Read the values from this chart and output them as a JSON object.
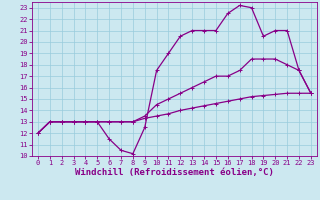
{
  "xlabel": "Windchill (Refroidissement éolien,°C)",
  "bg_color": "#cce8f0",
  "line_color": "#880088",
  "xlim": [
    -0.5,
    23.5
  ],
  "ylim": [
    10,
    23.5
  ],
  "xticks": [
    0,
    1,
    2,
    3,
    4,
    5,
    6,
    7,
    8,
    9,
    10,
    11,
    12,
    13,
    14,
    15,
    16,
    17,
    18,
    19,
    20,
    21,
    22,
    23
  ],
  "yticks": [
    10,
    11,
    12,
    13,
    14,
    15,
    16,
    17,
    18,
    19,
    20,
    21,
    22,
    23
  ],
  "line1_x": [
    0,
    1,
    2,
    3,
    4,
    5,
    6,
    7,
    8,
    9,
    10,
    11,
    12,
    13,
    14,
    15,
    16,
    17,
    18,
    19,
    20,
    21,
    22,
    23
  ],
  "line1_y": [
    12,
    13,
    13,
    13,
    13,
    13,
    11.5,
    10.5,
    10.2,
    12.5,
    17.5,
    19,
    20.5,
    21,
    21,
    21,
    22.5,
    23.2,
    23,
    20.5,
    21,
    21,
    17.5,
    15.5
  ],
  "line2_x": [
    0,
    1,
    2,
    3,
    4,
    5,
    6,
    7,
    8,
    9,
    10,
    11,
    12,
    13,
    14,
    15,
    16,
    17,
    18,
    19,
    20,
    21,
    22,
    23
  ],
  "line2_y": [
    12,
    13,
    13,
    13,
    13,
    13,
    13,
    13,
    13,
    13.5,
    14.5,
    15,
    15.5,
    16,
    16.5,
    17,
    17,
    17.5,
    18.5,
    18.5,
    18.5,
    18,
    17.5,
    15.5
  ],
  "line3_x": [
    0,
    1,
    2,
    3,
    4,
    5,
    6,
    7,
    8,
    9,
    10,
    11,
    12,
    13,
    14,
    15,
    16,
    17,
    18,
    19,
    20,
    21,
    22,
    23
  ],
  "line3_y": [
    12,
    13,
    13,
    13,
    13,
    13,
    13,
    13,
    13,
    13.3,
    13.5,
    13.7,
    14.0,
    14.2,
    14.4,
    14.6,
    14.8,
    15.0,
    15.2,
    15.3,
    15.4,
    15.5,
    15.5,
    15.5
  ],
  "grid_color": "#99ccdd",
  "tick_fontsize": 5.0,
  "xlabel_fontsize": 6.5,
  "marker_size": 2.5,
  "line_width": 0.9
}
